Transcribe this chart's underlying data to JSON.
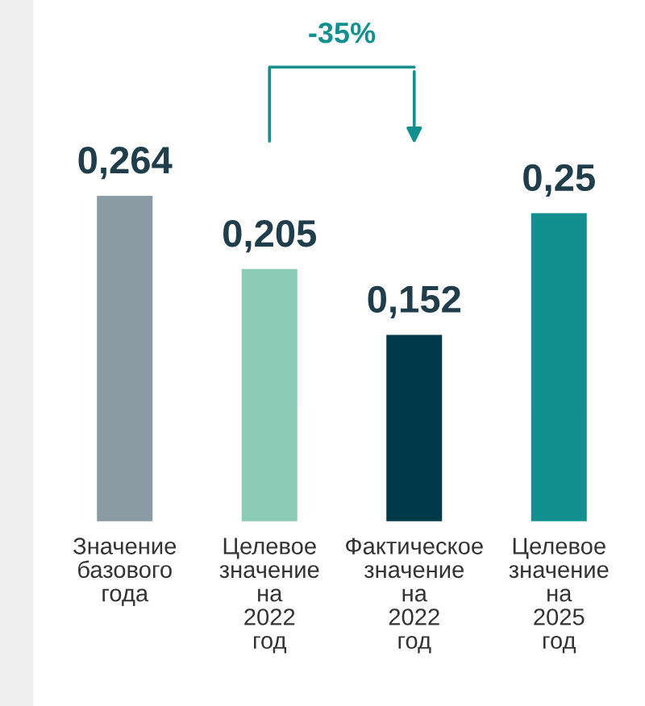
{
  "chart_data": {
    "type": "bar",
    "categories": [
      "Значение базового года",
      "Целевое значение на 2022 год",
      "Фактическое значение на 2022 год",
      "Целевое значение на 2025 год"
    ],
    "values": [
      0.264,
      0.205,
      0.152,
      0.25
    ],
    "colors": [
      "#8a9ba3",
      "#8ccbb5",
      "#003a4a",
      "#129090"
    ],
    "value_labels": [
      "0,264",
      "0,205",
      "0,152",
      "0,25"
    ],
    "annotations": [
      "-35%"
    ],
    "grid": false,
    "legend": false
  }
}
